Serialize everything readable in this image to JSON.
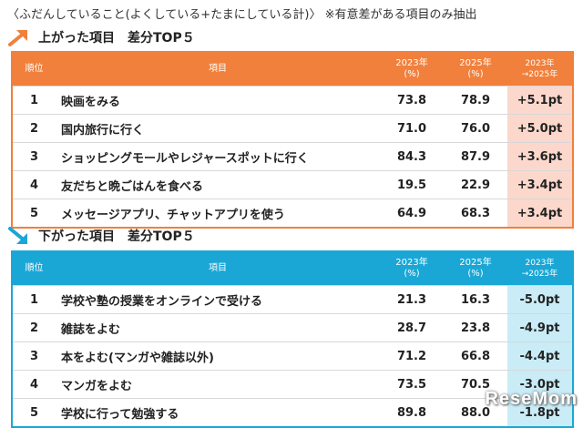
{
  "header": {
    "note": "〈ふだんしていること(よくしている+たまにしている計)〉 ※有意差がある項目のみ抽出"
  },
  "colors": {
    "up_accent": "#f0803c",
    "down_accent": "#1aa7d6",
    "up_diff_bg": "#fbd8cb",
    "down_diff_bg": "#c9ecf7"
  },
  "up": {
    "icon": "arrow-up-right-icon",
    "title": "上がった項目　差分TOP５",
    "columns": {
      "rank": "順位",
      "item": "項目",
      "y2023": "2023年",
      "y2023_unit": "(%)",
      "y2025": "2025年",
      "y2025_unit": "(%)",
      "diff": "2023年",
      "diff2": "→2025年"
    },
    "rows": [
      {
        "rank": "1",
        "item": "映画をみる",
        "y2023": "73.8",
        "y2025": "78.9",
        "diff": "+5.1pt"
      },
      {
        "rank": "2",
        "item": "国内旅行に行く",
        "y2023": "71.0",
        "y2025": "76.0",
        "diff": "+5.0pt"
      },
      {
        "rank": "3",
        "item": "ショッピングモールやレジャースポットに行く",
        "y2023": "84.3",
        "y2025": "87.9",
        "diff": "+3.6pt"
      },
      {
        "rank": "4",
        "item": "友だちと晩ごはんを食べる",
        "y2023": "19.5",
        "y2025": "22.9",
        "diff": "+3.4pt"
      },
      {
        "rank": "5",
        "item": "メッセージアプリ、チャットアプリを使う",
        "y2023": "64.9",
        "y2025": "68.3",
        "diff": "+3.4pt"
      }
    ]
  },
  "down": {
    "icon": "arrow-down-right-icon",
    "title": "下がった項目　差分TOP５",
    "columns": {
      "rank": "順位",
      "item": "項目",
      "y2023": "2023年",
      "y2023_unit": "(%)",
      "y2025": "2025年",
      "y2025_unit": "(%)",
      "diff": "2023年",
      "diff2": "→2025年"
    },
    "rows": [
      {
        "rank": "1",
        "item": "学校や塾の授業をオンラインで受ける",
        "y2023": "21.3",
        "y2025": "16.3",
        "diff": "-5.0pt"
      },
      {
        "rank": "2",
        "item": "雑誌をよむ",
        "y2023": "28.7",
        "y2025": "23.8",
        "diff": "-4.9pt"
      },
      {
        "rank": "3",
        "item": "本をよむ(マンガや雑誌以外)",
        "y2023": "71.2",
        "y2025": "66.8",
        "diff": "-4.4pt"
      },
      {
        "rank": "4",
        "item": "マンガをよむ",
        "y2023": "73.5",
        "y2025": "70.5",
        "diff": "-3.0pt"
      },
      {
        "rank": "5",
        "item": "学校に行って勉強する",
        "y2023": "89.8",
        "y2025": "88.0",
        "diff": "-1.8pt"
      }
    ]
  },
  "watermark": "ReseMom"
}
